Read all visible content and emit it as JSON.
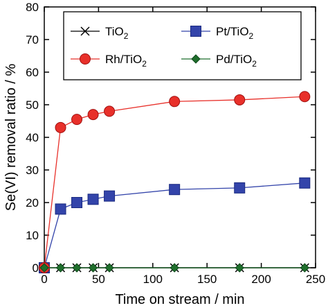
{
  "chart_data": {
    "type": "line",
    "title": "",
    "xlabel": "Time on stream / min",
    "ylabel": "Se(VI) removal ratio / %",
    "xlim": [
      0,
      250
    ],
    "ylim": [
      0,
      80
    ],
    "xticks": [
      0,
      50,
      100,
      150,
      200,
      250
    ],
    "yticks": [
      0,
      10,
      20,
      30,
      40,
      50,
      60,
      70,
      80
    ],
    "grid": false,
    "legend_position": "top",
    "series": [
      {
        "name": "TiO",
        "sub": "2",
        "color": "#000000",
        "marker": "x",
        "x": [
          0,
          15,
          30,
          45,
          60,
          120,
          180,
          240
        ],
        "y": [
          0,
          0,
          0,
          0,
          0,
          0,
          0,
          0
        ]
      },
      {
        "name": "Pt/TiO",
        "sub": "2",
        "color": "#3344aa",
        "marker": "square",
        "x": [
          0,
          15,
          30,
          45,
          60,
          120,
          180,
          240
        ],
        "y": [
          0,
          18,
          20,
          21,
          22,
          24,
          24.5,
          26
        ]
      },
      {
        "name": "Rh/TiO",
        "sub": "2",
        "color": "#e8302a",
        "marker": "circle",
        "x": [
          0,
          15,
          30,
          45,
          60,
          120,
          180,
          240
        ],
        "y": [
          0,
          43,
          45.5,
          47,
          48,
          51,
          51.5,
          52.5
        ]
      },
      {
        "name": "Pd/TiO",
        "sub": "2",
        "color": "#1f6e2c",
        "marker": "diamond",
        "x": [
          0,
          15,
          30,
          45,
          60,
          120,
          180,
          240
        ],
        "y": [
          0,
          0,
          0,
          0,
          0,
          0,
          0,
          0
        ]
      }
    ]
  }
}
